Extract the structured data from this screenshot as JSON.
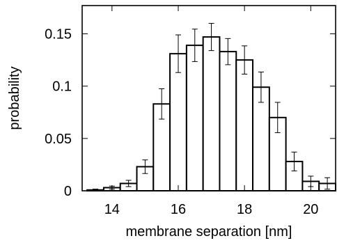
{
  "chart_data": {
    "type": "bar",
    "xlabel": "membrane separation [nm]",
    "ylabel": "probability",
    "xlim": [
      13.1,
      20.75
    ],
    "ylim": [
      0,
      0.177
    ],
    "x_ticks": [
      {
        "value": 14,
        "label": "14"
      },
      {
        "value": 16,
        "label": "16"
      },
      {
        "value": 18,
        "label": "18"
      },
      {
        "value": 20,
        "label": "20"
      }
    ],
    "y_ticks": [
      {
        "value": 0,
        "label": "0"
      },
      {
        "value": 0.05,
        "label": "0.05"
      },
      {
        "value": 0.1,
        "label": "0.1"
      },
      {
        "value": 0.15,
        "label": "0.15"
      }
    ],
    "bin_width": 0.5,
    "bins": [
      {
        "center": 13.5,
        "value": 0.0008,
        "error": 0.0008
      },
      {
        "center": 14.0,
        "value": 0.003,
        "error": 0.0015
      },
      {
        "center": 14.5,
        "value": 0.007,
        "error": 0.003
      },
      {
        "center": 15.0,
        "value": 0.023,
        "error": 0.0065
      },
      {
        "center": 15.5,
        "value": 0.083,
        "error": 0.0145
      },
      {
        "center": 16.0,
        "value": 0.131,
        "error": 0.018
      },
      {
        "center": 16.5,
        "value": 0.139,
        "error": 0.0155
      },
      {
        "center": 17.0,
        "value": 0.147,
        "error": 0.013
      },
      {
        "center": 17.5,
        "value": 0.133,
        "error": 0.0125
      },
      {
        "center": 18.0,
        "value": 0.125,
        "error": 0.0135
      },
      {
        "center": 18.5,
        "value": 0.099,
        "error": 0.0145
      },
      {
        "center": 19.0,
        "value": 0.07,
        "error": 0.0145
      },
      {
        "center": 19.5,
        "value": 0.028,
        "error": 0.009
      },
      {
        "center": 20.0,
        "value": 0.009,
        "error": 0.005
      },
      {
        "center": 20.5,
        "value": 0.007,
        "error": 0.0055
      }
    ],
    "grid": false,
    "legend": "none"
  }
}
